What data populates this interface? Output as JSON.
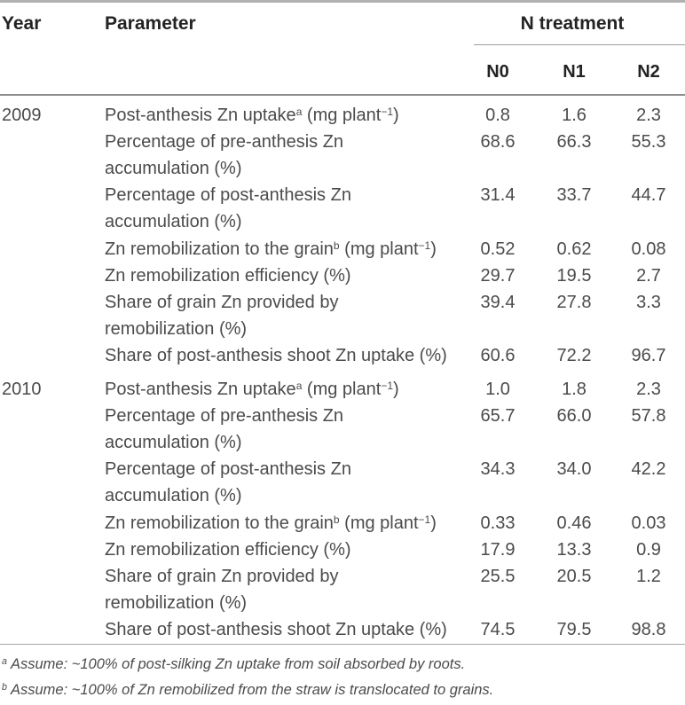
{
  "table": {
    "columns": {
      "year": "Year",
      "parameter": "Parameter",
      "treatment_group": "N treatment",
      "treatments": [
        "N0",
        "N1",
        "N2"
      ]
    },
    "groups": [
      {
        "year": "2009",
        "rows": [
          {
            "parameter": [
              {
                "text": "Post-anthesis Zn uptake"
              },
              {
                "sup": "a"
              },
              {
                "text": " (mg plant"
              },
              {
                "sup": "−1"
              },
              {
                "text": ")"
              }
            ],
            "values": [
              "0.8",
              "1.6",
              "2.3"
            ]
          },
          {
            "parameter": [
              {
                "text": "Percentage of pre-anthesis Zn\naccumulation (%)"
              }
            ],
            "values": [
              "68.6",
              "66.3",
              "55.3"
            ]
          },
          {
            "parameter": [
              {
                "text": "Percentage of post-anthesis Zn\naccumulation (%)"
              }
            ],
            "values": [
              "31.4",
              "33.7",
              "44.7"
            ]
          },
          {
            "parameter": [
              {
                "text": "Zn remobilization to the grain"
              },
              {
                "sup": "b"
              },
              {
                "text": " (mg plant"
              },
              {
                "sup": "−1"
              },
              {
                "text": ")"
              }
            ],
            "values": [
              "0.52",
              "0.62",
              "0.08"
            ]
          },
          {
            "parameter": [
              {
                "text": "Zn remobilization efficiency (%)"
              }
            ],
            "values": [
              "29.7",
              "19.5",
              "2.7"
            ]
          },
          {
            "parameter": [
              {
                "text": "Share of grain Zn provided by\nremobilization (%)"
              }
            ],
            "values": [
              "39.4",
              "27.8",
              "3.3"
            ]
          },
          {
            "parameter": [
              {
                "text": "Share of post-anthesis shoot Zn uptake (%)"
              }
            ],
            "values": [
              "60.6",
              "72.2",
              "96.7"
            ]
          }
        ]
      },
      {
        "year": "2010",
        "rows": [
          {
            "parameter": [
              {
                "text": "Post-anthesis Zn uptake"
              },
              {
                "sup": "a"
              },
              {
                "text": " (mg plant"
              },
              {
                "sup": "−1"
              },
              {
                "text": ")"
              }
            ],
            "values": [
              "1.0",
              "1.8",
              "2.3"
            ]
          },
          {
            "parameter": [
              {
                "text": "Percentage of pre-anthesis Zn\naccumulation (%)"
              }
            ],
            "values": [
              "65.7",
              "66.0",
              "57.8"
            ]
          },
          {
            "parameter": [
              {
                "text": "Percentage of post-anthesis Zn\naccumulation (%)"
              }
            ],
            "values": [
              "34.3",
              "34.0",
              "42.2"
            ]
          },
          {
            "parameter": [
              {
                "text": "Zn remobilization to the grain"
              },
              {
                "sup": "b"
              },
              {
                "text": " (mg plant"
              },
              {
                "sup": "−1"
              },
              {
                "text": ")"
              }
            ],
            "values": [
              "0.33",
              "0.46",
              "0.03"
            ]
          },
          {
            "parameter": [
              {
                "text": "Zn remobilization efficiency (%)"
              }
            ],
            "values": [
              "17.9",
              "13.3",
              "0.9"
            ]
          },
          {
            "parameter": [
              {
                "text": "Share of grain Zn provided by\nremobilization (%)"
              }
            ],
            "values": [
              "25.5",
              "20.5",
              "1.2"
            ]
          },
          {
            "parameter": [
              {
                "text": "Share of post-anthesis shoot Zn uptake (%)"
              }
            ],
            "values": [
              "74.5",
              "79.5",
              "98.8"
            ]
          }
        ]
      }
    ],
    "footnotes": [
      {
        "sup": "a",
        "text": "Assume: ~100% of post-silking Zn uptake from soil absorbed by roots."
      },
      {
        "sup": "b",
        "text": "Assume: ~100% of Zn remobilized from the straw is translocated to grains."
      }
    ]
  },
  "colors": {
    "page_background": "#ffffff",
    "heading_text": "#232323",
    "body_text": "#4b4b4d",
    "rule_heavy": "#b1b1b1",
    "rule_medium": "#8e8e8e",
    "rule_light": "#a8a8a8"
  }
}
